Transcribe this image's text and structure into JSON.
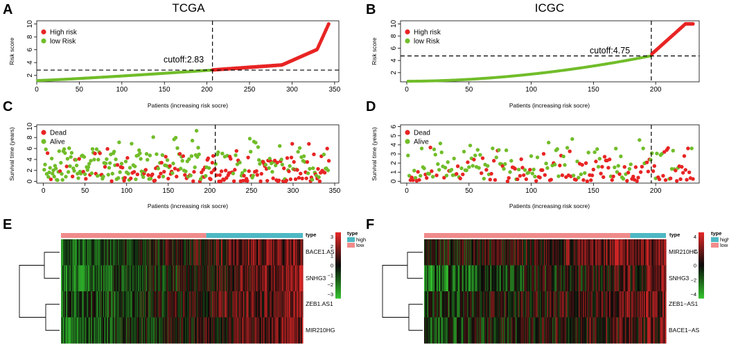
{
  "colors": {
    "high": "#e82424",
    "low": "#71bd2a",
    "dead": "#e82424",
    "alive": "#71bd2a",
    "heat_high": "#ff2a2a",
    "heat_mid": "#000000",
    "heat_low": "#3fcf2f",
    "type_high": "#4db8c4",
    "type_low": "#f08b8b"
  },
  "chart_data": [
    {
      "panel": "A",
      "type": "scatter",
      "title": "TCGA",
      "ylabel": "Risk score",
      "xlabel": "Patients (increasing risk socre)",
      "n": 343,
      "cutoff_index": 206,
      "cutoff_label": "cutoff:2.83",
      "cutoff_value": 2.83,
      "xlim": [
        0,
        355
      ],
      "ylim": [
        1,
        10.5
      ],
      "xticks": [
        "0",
        "50",
        "100",
        "150",
        "200",
        "250",
        "300",
        "350"
      ],
      "yticks": [
        "2",
        "4",
        "6",
        "8",
        "10"
      ],
      "legend": [
        "High risk",
        "low Risk"
      ],
      "min": 1.2,
      "max": 10
    },
    {
      "panel": "B",
      "type": "scatter",
      "title": "ICGC",
      "ylabel": "Risk score",
      "xlabel": "Patients (increasing risk socre)",
      "n": 230,
      "cutoff_index": 196,
      "cutoff_label": "cutoff:4.75",
      "cutoff_value": 4.75,
      "xlim": [
        -5,
        235
      ],
      "ylim": [
        0.5,
        10.5
      ],
      "xticks": [
        "0",
        "50",
        "100",
        "150",
        "200"
      ],
      "yticks": [
        "2",
        "4",
        "6",
        "8",
        "10"
      ],
      "legend": [
        "High risk",
        "low Risk"
      ],
      "min": 0.6,
      "max": 10
    },
    {
      "panel": "C",
      "type": "scatter",
      "ylabel": "Survival time (years)",
      "xlabel": "Patients (increasing risk socre)",
      "n": 343,
      "cutoff_index": 206,
      "xlim": [
        -8,
        355
      ],
      "ylim": [
        -0.3,
        10.3
      ],
      "xticks": [
        "0",
        "50",
        "100",
        "150",
        "200",
        "250",
        "300",
        "350"
      ],
      "yticks": [
        "0",
        "2",
        "4",
        "6",
        "8",
        "10"
      ],
      "legend": [
        "Dead",
        "Alive"
      ]
    },
    {
      "panel": "D",
      "type": "scatter",
      "ylabel": "Survival time (years)",
      "xlabel": "Patients (increasing risk socre)",
      "n": 230,
      "cutoff_index": 196,
      "xlim": [
        -5,
        235
      ],
      "ylim": [
        -0.2,
        6.2
      ],
      "xticks": [
        "0",
        "50",
        "100",
        "150",
        "200"
      ],
      "yticks": [
        "0",
        "1",
        "2",
        "3",
        "4",
        "5",
        "6"
      ],
      "legend": [
        "Dead",
        "Alive"
      ]
    },
    {
      "panel": "E",
      "type": "heatmap",
      "annotation_label": "type",
      "genes": [
        "BACE1.AS",
        "SNHG3",
        "ZEB1.AS1",
        "MIR210HG"
      ],
      "n": 343,
      "n_low": 206,
      "n_high": 137,
      "scale_ticks": [
        "3",
        "2",
        "1",
        "0",
        "−1",
        "−2",
        "−3"
      ],
      "legend_title": "type",
      "legend": [
        "high",
        "low"
      ]
    },
    {
      "panel": "F",
      "type": "heatmap",
      "annotation_label": "type",
      "genes": [
        "MIR210HG",
        "SNHG3",
        "ZEB1−AS1",
        "BACE1−AS"
      ],
      "n": 230,
      "n_low": 196,
      "n_high": 34,
      "scale_ticks": [
        "4",
        "2",
        "0",
        "−2",
        "−4"
      ],
      "legend_title": "type",
      "legend": [
        "high",
        "low"
      ]
    }
  ]
}
